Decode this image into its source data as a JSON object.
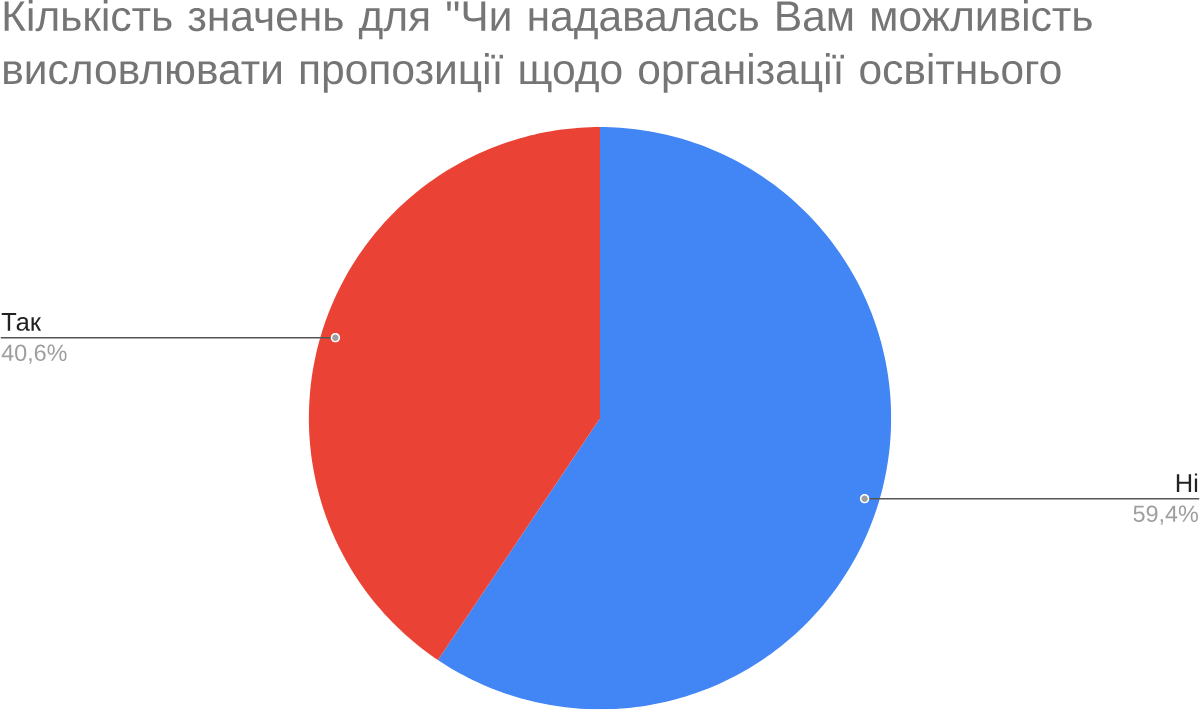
{
  "chart_data": {
    "type": "pie",
    "title": "Кількість значень для \"Чи надавалась Вам можливість висловлювати пропозиції щодо організації освітнього",
    "categories": [
      "Ні",
      "Так"
    ],
    "values": [
      59.4,
      40.6
    ],
    "colors": [
      "#4285f4",
      "#ea4335"
    ],
    "value_labels": [
      "59,4%",
      "40,6%"
    ]
  }
}
